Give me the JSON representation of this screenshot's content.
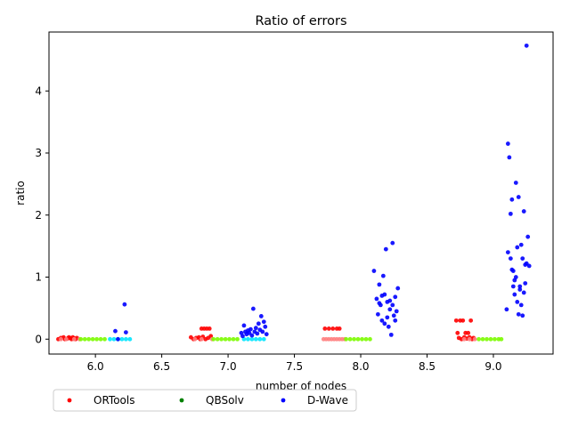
{
  "chart_data": {
    "type": "scatter",
    "title": "Ratio of errors",
    "xlabel": "number of nodes",
    "ylabel": "ratio",
    "xlim": [
      5.65,
      9.45
    ],
    "ylim": [
      -0.24,
      4.95
    ],
    "xticks": [
      "6.0",
      "6.5",
      "7.0",
      "7.5",
      "8.0",
      "8.5",
      "9.0"
    ],
    "yticks": [
      "0",
      "1",
      "2",
      "3",
      "4"
    ],
    "grid": false,
    "legend": {
      "placement": "below-left",
      "columns": 3
    },
    "series": [
      {
        "name": "ORTools",
        "color": "#ff0000",
        "points": [
          [
            5.72,
            0.0
          ],
          [
            5.74,
            0.02
          ],
          [
            5.76,
            0.03
          ],
          [
            5.77,
            0.0
          ],
          [
            5.79,
            0.01
          ],
          [
            5.8,
            0.03
          ],
          [
            5.81,
            0.02
          ],
          [
            5.82,
            0.0
          ],
          [
            5.83,
            0.03
          ],
          [
            5.84,
            0.01
          ],
          [
            5.85,
            0.0
          ],
          [
            5.86,
            0.02
          ],
          [
            6.72,
            0.03
          ],
          [
            6.74,
            0.0
          ],
          [
            6.76,
            0.02
          ],
          [
            6.78,
            0.03
          ],
          [
            6.79,
            0.0
          ],
          [
            6.8,
            0.17
          ],
          [
            6.81,
            0.04
          ],
          [
            6.82,
            0.17
          ],
          [
            6.83,
            0.0
          ],
          [
            6.84,
            0.17
          ],
          [
            6.85,
            0.02
          ],
          [
            6.86,
            0.17
          ],
          [
            6.87,
            0.05
          ],
          [
            7.73,
            0.17
          ],
          [
            7.76,
            0.17
          ],
          [
            7.79,
            0.17
          ],
          [
            7.82,
            0.17
          ],
          [
            7.84,
            0.17
          ],
          [
            8.72,
            0.3
          ],
          [
            8.73,
            0.1
          ],
          [
            8.74,
            0.02
          ],
          [
            8.75,
            0.3
          ],
          [
            8.76,
            0.0
          ],
          [
            8.77,
            0.3
          ],
          [
            8.78,
            0.03
          ],
          [
            8.79,
            0.1
          ],
          [
            8.8,
            0.01
          ],
          [
            8.81,
            0.1
          ],
          [
            8.82,
            0.03
          ],
          [
            8.83,
            0.3
          ],
          [
            8.84,
            0.0
          ],
          [
            8.85,
            0.02
          ]
        ]
      },
      {
        "name": "ORTools",
        "color": "#ff8080",
        "points": [
          [
            5.74,
            0.0
          ],
          [
            5.78,
            0.0
          ],
          [
            5.84,
            0.0
          ],
          [
            5.88,
            0.0
          ],
          [
            6.75,
            0.0
          ],
          [
            6.8,
            0.0
          ],
          [
            6.88,
            0.0
          ],
          [
            7.72,
            0.0
          ],
          [
            7.74,
            0.0
          ],
          [
            7.76,
            0.0
          ],
          [
            7.78,
            0.0
          ],
          [
            7.8,
            0.0
          ],
          [
            7.82,
            0.0
          ],
          [
            7.84,
            0.0
          ],
          [
            7.86,
            0.0
          ],
          [
            7.88,
            0.0
          ],
          [
            8.78,
            0.0
          ],
          [
            8.82,
            0.0
          ],
          [
            8.86,
            0.0
          ]
        ]
      },
      {
        "name": "QBSolv",
        "color": "#7cfc00",
        "points": [
          [
            5.89,
            0.0
          ],
          [
            5.92,
            0.0
          ],
          [
            5.95,
            0.0
          ],
          [
            5.98,
            0.0
          ],
          [
            6.01,
            0.0
          ],
          [
            6.04,
            0.0
          ],
          [
            6.07,
            0.0
          ],
          [
            6.89,
            0.0
          ],
          [
            6.92,
            0.0
          ],
          [
            6.95,
            0.0
          ],
          [
            6.98,
            0.0
          ],
          [
            7.01,
            0.0
          ],
          [
            7.04,
            0.0
          ],
          [
            7.07,
            0.0
          ],
          [
            7.89,
            0.0
          ],
          [
            7.92,
            0.0
          ],
          [
            7.95,
            0.0
          ],
          [
            7.98,
            0.0
          ],
          [
            8.01,
            0.0
          ],
          [
            8.04,
            0.0
          ],
          [
            8.07,
            0.0
          ],
          [
            8.89,
            0.0
          ],
          [
            8.92,
            0.0
          ],
          [
            8.95,
            0.0
          ],
          [
            8.98,
            0.0
          ],
          [
            9.01,
            0.0
          ],
          [
            9.04,
            0.0
          ],
          [
            9.06,
            0.0
          ]
        ]
      },
      {
        "name": "D-Wave",
        "color": "#00e5ff",
        "points": [
          [
            6.11,
            0.0
          ],
          [
            6.14,
            0.0
          ],
          [
            6.17,
            0.0
          ],
          [
            6.2,
            0.0
          ],
          [
            6.23,
            0.0
          ],
          [
            6.26,
            0.0
          ],
          [
            7.12,
            0.0
          ],
          [
            7.15,
            0.0
          ],
          [
            7.18,
            0.0
          ],
          [
            7.21,
            0.0
          ],
          [
            7.24,
            0.0
          ],
          [
            7.27,
            0.0
          ]
        ]
      },
      {
        "name": "D-Wave",
        "color": "#0000ff",
        "points": [
          [
            6.15,
            0.13
          ],
          [
            6.17,
            0.0
          ],
          [
            6.22,
            0.56
          ],
          [
            6.23,
            0.11
          ],
          [
            7.1,
            0.1
          ],
          [
            7.11,
            0.05
          ],
          [
            7.12,
            0.22
          ],
          [
            7.13,
            0.12
          ],
          [
            7.14,
            0.08
          ],
          [
            7.15,
            0.14
          ],
          [
            7.16,
            0.1
          ],
          [
            7.17,
            0.16
          ],
          [
            7.18,
            0.06
          ],
          [
            7.19,
            0.49
          ],
          [
            7.2,
            0.12
          ],
          [
            7.21,
            0.18
          ],
          [
            7.22,
            0.09
          ],
          [
            7.23,
            0.25
          ],
          [
            7.24,
            0.15
          ],
          [
            7.25,
            0.37
          ],
          [
            7.26,
            0.12
          ],
          [
            7.27,
            0.28
          ],
          [
            7.28,
            0.2
          ],
          [
            7.29,
            0.08
          ],
          [
            8.1,
            1.1
          ],
          [
            8.12,
            0.65
          ],
          [
            8.13,
            0.4
          ],
          [
            8.14,
            0.88
          ],
          [
            8.15,
            0.55
          ],
          [
            8.16,
            0.3
          ],
          [
            8.17,
            1.02
          ],
          [
            8.18,
            0.72
          ],
          [
            8.19,
            1.45
          ],
          [
            8.2,
            0.6
          ],
          [
            8.21,
            0.2
          ],
          [
            8.22,
            0.48
          ],
          [
            8.23,
            0.07
          ],
          [
            8.24,
            1.55
          ],
          [
            8.25,
            0.38
          ],
          [
            8.26,
            0.68
          ],
          [
            8.27,
            0.45
          ],
          [
            8.28,
            0.82
          ],
          [
            8.18,
            0.25
          ],
          [
            8.2,
            0.35
          ],
          [
            8.22,
            0.62
          ],
          [
            8.24,
            0.55
          ],
          [
            8.26,
            0.3
          ],
          [
            8.16,
            0.7
          ],
          [
            8.14,
            0.58
          ],
          [
            9.1,
            0.48
          ],
          [
            9.11,
            3.15
          ],
          [
            9.12,
            2.93
          ],
          [
            9.13,
            2.02
          ],
          [
            9.14,
            2.25
          ],
          [
            9.15,
            1.1
          ],
          [
            9.16,
            0.72
          ],
          [
            9.17,
            2.52
          ],
          [
            9.18,
            1.48
          ],
          [
            9.19,
            2.29
          ],
          [
            9.2,
            0.8
          ],
          [
            9.21,
            1.52
          ],
          [
            9.22,
            1.3
          ],
          [
            9.23,
            2.06
          ],
          [
            9.24,
            0.9
          ],
          [
            9.25,
            4.73
          ],
          [
            9.26,
            1.65
          ],
          [
            9.27,
            1.18
          ],
          [
            9.11,
            1.4
          ],
          [
            9.13,
            1.3
          ],
          [
            9.15,
            0.85
          ],
          [
            9.17,
            1.0
          ],
          [
            9.19,
            0.4
          ],
          [
            9.21,
            0.55
          ],
          [
            9.23,
            0.75
          ],
          [
            9.25,
            1.22
          ],
          [
            9.14,
            1.12
          ],
          [
            9.16,
            0.95
          ],
          [
            9.18,
            0.6
          ],
          [
            9.2,
            0.85
          ],
          [
            9.22,
            0.38
          ],
          [
            9.24,
            1.2
          ]
        ]
      }
    ],
    "legend_entries": [
      {
        "label": "ORTools",
        "color": "#ff0000"
      },
      {
        "label": "QBSolv",
        "color": "#008000"
      },
      {
        "label": "D-Wave",
        "color": "#0000ff"
      }
    ]
  }
}
